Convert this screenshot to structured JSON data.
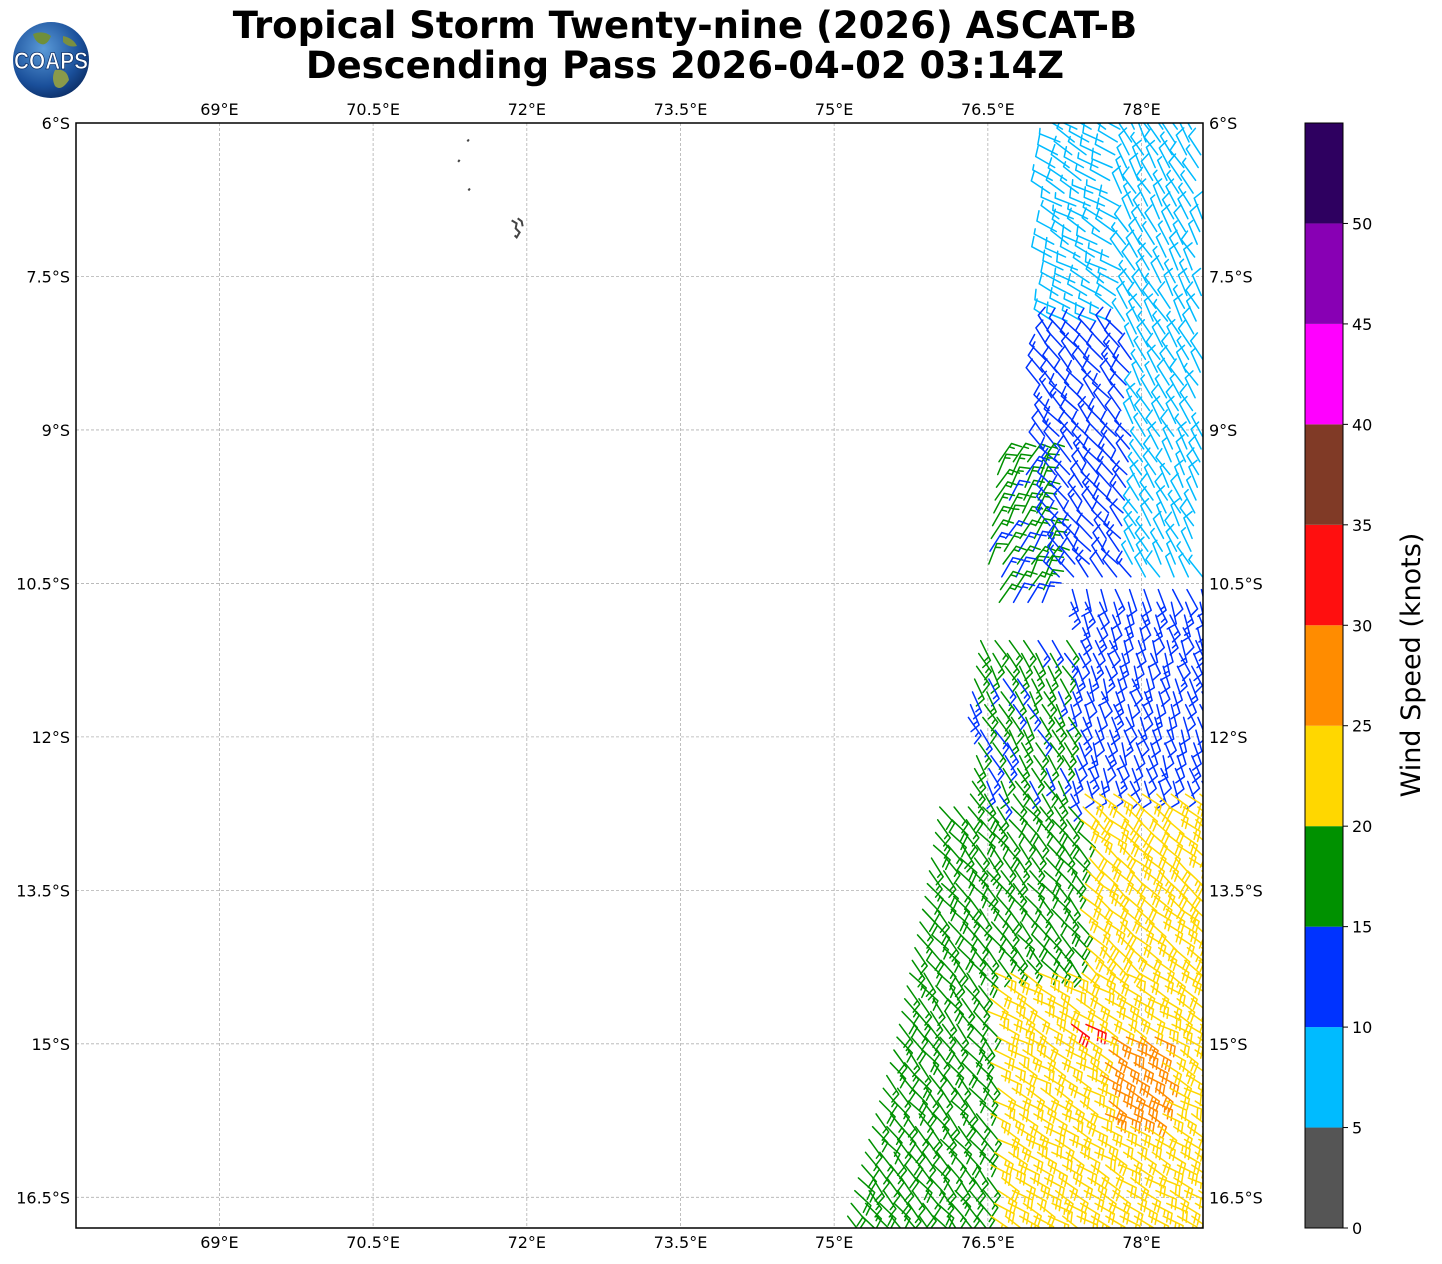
{
  "title": {
    "line1": "Tropical Storm Twenty-nine (2026) ASCAT-B",
    "line2": "Descending Pass 2026-04-02 03:14Z"
  },
  "logo": {
    "text": "COAPS",
    "icon": "globe-icon"
  },
  "map": {
    "lon_range": [
      67.6,
      78.6
    ],
    "lat_range": [
      -16.8,
      -6.0
    ],
    "lon_ticks": [
      {
        "value": 69.0,
        "label": "69°E"
      },
      {
        "value": 70.5,
        "label": "70.5°E"
      },
      {
        "value": 72.0,
        "label": "72°E"
      },
      {
        "value": 73.5,
        "label": "73.5°E"
      },
      {
        "value": 75.0,
        "label": "75°E"
      },
      {
        "value": 76.5,
        "label": "76.5°E"
      },
      {
        "value": 78.0,
        "label": "78°E"
      }
    ],
    "lat_ticks": [
      {
        "value": -6.0,
        "label": "6°S"
      },
      {
        "value": -7.5,
        "label": "7.5°S"
      },
      {
        "value": -9.0,
        "label": "9°S"
      },
      {
        "value": -10.5,
        "label": "10.5°S"
      },
      {
        "value": -12.0,
        "label": "12°S"
      },
      {
        "value": -13.5,
        "label": "13.5°S"
      },
      {
        "value": -15.0,
        "label": "15°S"
      },
      {
        "value": -16.5,
        "label": "16.5°S"
      }
    ],
    "gridlines": true,
    "islands": [
      {
        "lon": 71.94,
        "lat": -7.02
      },
      {
        "lon": 71.42,
        "lat": -6.18
      },
      {
        "lon": 71.33,
        "lat": -6.38
      },
      {
        "lon": 71.43,
        "lat": -6.66
      }
    ],
    "swath": {
      "description": "ASCAT-B descending pass wind barbs",
      "east_edge_lon": 78.6,
      "west_edge": [
        {
          "lat": -6.0,
          "lon": 77.1
        },
        {
          "lat": -9.0,
          "lon": 76.5
        },
        {
          "lat": -11.0,
          "lon": 76.3
        },
        {
          "lat": -13.5,
          "lon": 75.9
        },
        {
          "lat": -15.0,
          "lon": 75.6
        },
        {
          "lat": -16.8,
          "lon": 75.1
        }
      ],
      "wind_regions": [
        {
          "lat_min": -16.8,
          "lat_max": -14.2,
          "lon_min": 76.5,
          "lon_max": 78.6,
          "speed_kt": 22,
          "dir_deg": 120
        },
        {
          "lat_min": -15.8,
          "lat_max": -14.9,
          "lon_min": 77.6,
          "lon_max": 78.2,
          "speed_kt": 27,
          "dir_deg": 120
        },
        {
          "lat_min": -14.9,
          "lat_max": -14.7,
          "lon_min": 77.3,
          "lon_max": 77.5,
          "speed_kt": 32,
          "dir_deg": 120
        },
        {
          "lat_min": -16.8,
          "lat_max": -12.6,
          "lon_min": 75.1,
          "lon_max": 77.4,
          "speed_kt": 17,
          "dir_deg": 140
        },
        {
          "lat_min": -14.3,
          "lat_max": -12.5,
          "lon_min": 77.4,
          "lon_max": 78.6,
          "speed_kt": 22,
          "dir_deg": 130
        },
        {
          "lat_min": -12.6,
          "lat_max": -11.0,
          "lon_min": 76.3,
          "lon_max": 77.3,
          "speed_kt": 16,
          "dir_deg": 150
        },
        {
          "lat_min": -12.6,
          "lat_max": -10.5,
          "lon_min": 77.3,
          "lon_max": 78.6,
          "speed_kt": 12,
          "dir_deg": 160
        },
        {
          "lat_min": -10.8,
          "lat_max": -9.2,
          "lon_min": 76.5,
          "lon_max": 77.1,
          "speed_kt": 16,
          "dir_deg": 30
        },
        {
          "lat_min": -10.5,
          "lat_max": -8.0,
          "lon_min": 77.0,
          "lon_max": 77.9,
          "speed_kt": 12,
          "dir_deg": 320
        },
        {
          "lat_min": -10.5,
          "lat_max": -6.0,
          "lon_min": 77.8,
          "lon_max": 78.6,
          "speed_kt": 8,
          "dir_deg": 330
        },
        {
          "lat_min": -8.0,
          "lat_max": -6.0,
          "lon_min": 77.1,
          "lon_max": 77.8,
          "speed_kt": 8,
          "dir_deg": 300
        }
      ]
    }
  },
  "colorbar": {
    "label": "Wind Speed (knots)",
    "levels": [
      {
        "min": 0,
        "max": 5,
        "color": "#555555"
      },
      {
        "min": 5,
        "max": 10,
        "color": "#00bbff"
      },
      {
        "min": 10,
        "max": 15,
        "color": "#0033ff"
      },
      {
        "min": 15,
        "max": 20,
        "color": "#009100"
      },
      {
        "min": 20,
        "max": 25,
        "color": "#ffd700"
      },
      {
        "min": 25,
        "max": 30,
        "color": "#ff8c00"
      },
      {
        "min": 30,
        "max": 35,
        "color": "#ff0f0f"
      },
      {
        "min": 35,
        "max": 40,
        "color": "#803a26"
      },
      {
        "min": 40,
        "max": 45,
        "color": "#ff00ff"
      },
      {
        "min": 45,
        "max": 50,
        "color": "#8800b4"
      },
      {
        "min": 50,
        "max": 55,
        "color": "#2e0060"
      }
    ],
    "tick_labels": [
      "0",
      "5",
      "10",
      "15",
      "20",
      "25",
      "30",
      "35",
      "40",
      "45",
      "50"
    ]
  }
}
